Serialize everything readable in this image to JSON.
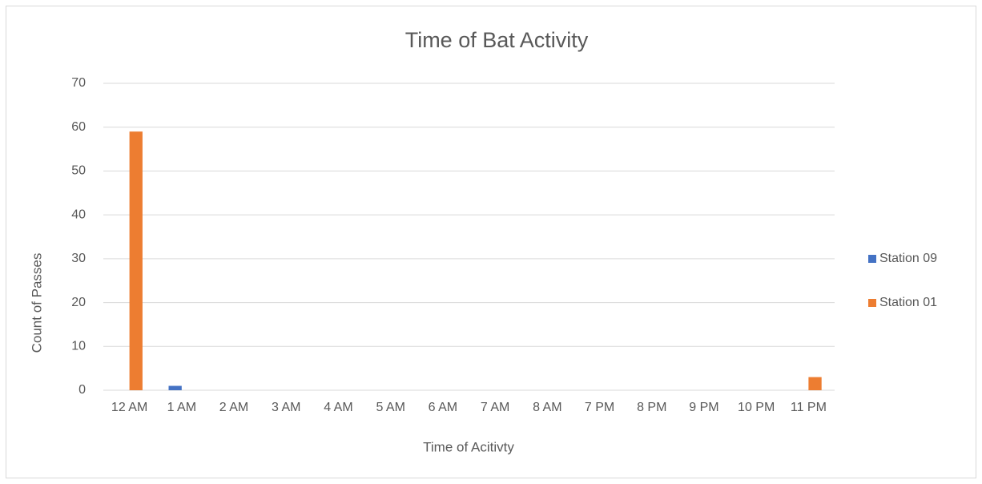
{
  "chart_data": {
    "type": "bar",
    "title": "Time of Bat Activity",
    "x_label": "Time of Acitivty",
    "y_label": "Count of Passes",
    "categories": [
      "12 AM",
      "1 AM",
      "2 AM",
      "3 AM",
      "4 AM",
      "5 AM",
      "6 AM",
      "7 AM",
      "8 AM",
      "7 PM",
      "8 PM",
      "9 PM",
      "10 PM",
      "11 PM"
    ],
    "series": [
      {
        "name": "Station 09",
        "color": "#4472c4",
        "values": [
          0,
          1,
          0,
          0,
          0,
          0,
          0,
          0,
          0,
          0,
          0,
          0,
          0,
          0
        ]
      },
      {
        "name": "Station 01",
        "color": "#ed7d31",
        "values": [
          59,
          0,
          0,
          0,
          0,
          0,
          0,
          0,
          0,
          0,
          0,
          0,
          0,
          3
        ]
      }
    ],
    "ylim": [
      0,
      70
    ],
    "yticks": [
      0,
      10,
      20,
      30,
      40,
      50,
      60,
      70
    ],
    "grid": true,
    "legend": "right"
  }
}
